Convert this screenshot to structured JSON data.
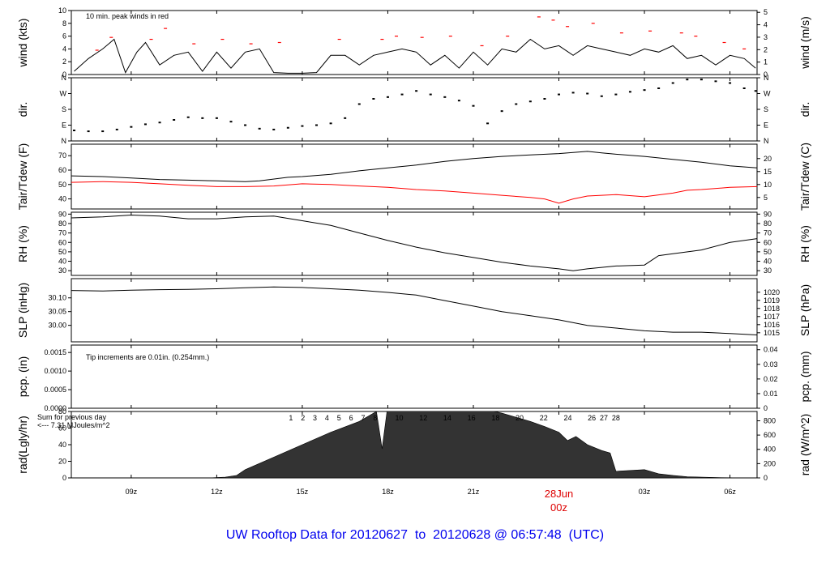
{
  "footer": {
    "title": "UW Rooftop Data for 20120627  to  20120628 @ 06:57:48  (UTC)"
  },
  "x_axis": {
    "ticks": [
      "09z",
      "12z",
      "15z",
      "18z",
      "21z",
      "00z",
      "03z",
      "06z"
    ],
    "tick_hours": [
      9,
      12,
      15,
      18,
      21,
      24,
      27,
      30
    ],
    "date_label": "28Jun",
    "date_hour": 24,
    "range_hours": [
      6.9,
      30.95
    ]
  },
  "chart_data": [
    {
      "type": "line",
      "title": "wind",
      "ylabel_left": "wind (kts)",
      "ylabel_right": "wind (m/s)",
      "annotation": "10 min. peak winds in red",
      "ylim": [
        0,
        10
      ],
      "yticks_left": [
        "0",
        "2",
        "4",
        "6",
        "8",
        "10"
      ],
      "yticks_right": [
        "0",
        "1",
        "2",
        "3",
        "4",
        "5"
      ],
      "series": [
        {
          "name": "wind",
          "color": "#000000",
          "x": [
            7.0,
            7.5,
            8.0,
            8.4,
            8.8,
            9.2,
            9.5,
            10.0,
            10.5,
            11.0,
            11.5,
            12.0,
            12.5,
            13.0,
            13.5,
            14.0,
            14.5,
            15.0,
            15.5,
            16.0,
            16.5,
            17.0,
            17.5,
            18.0,
            18.5,
            19.0,
            19.5,
            20.0,
            20.5,
            21.0,
            21.5,
            22.0,
            22.5,
            23.0,
            23.5,
            24.0,
            24.5,
            25.0,
            25.5,
            26.0,
            26.5,
            27.0,
            27.5,
            28.0,
            28.5,
            29.0,
            29.5,
            30.0,
            30.5,
            30.9
          ],
          "y": [
            0.5,
            2.5,
            4.0,
            5.5,
            0.3,
            3.5,
            5.0,
            1.5,
            3.0,
            3.5,
            0.5,
            3.5,
            1.0,
            3.5,
            4.0,
            0.3,
            0.2,
            0.2,
            0.3,
            3.0,
            3.0,
            1.5,
            3.0,
            3.5,
            4.0,
            3.5,
            1.5,
            3.0,
            1.0,
            3.5,
            1.5,
            4.0,
            3.5,
            5.5,
            4.0,
            4.5,
            3.0,
            4.5,
            4.0,
            3.5,
            3.0,
            4.0,
            3.5,
            4.5,
            2.5,
            3.0,
            1.5,
            3.0,
            2.5,
            1.0
          ]
        },
        {
          "name": "10 min. peak winds",
          "color": "#ff0000",
          "x": [
            7.8,
            8.3,
            9.7,
            10.2,
            11.2,
            12.2,
            13.2,
            14.2,
            16.3,
            17.8,
            18.3,
            19.2,
            20.2,
            21.3,
            22.2,
            23.3,
            23.8,
            24.3,
            25.2,
            26.2,
            27.2,
            28.3,
            28.8,
            29.8,
            30.5
          ],
          "y": [
            3.8,
            5.8,
            5.5,
            7.2,
            4.8,
            5.5,
            4.8,
            5.0,
            5.5,
            5.5,
            6.0,
            5.8,
            6.0,
            4.5,
            6.0,
            9.0,
            8.5,
            7.5,
            8.0,
            6.5,
            6.8,
            6.5,
            6.0,
            5.0,
            4.0
          ]
        }
      ]
    },
    {
      "type": "scatter",
      "title": "dir.",
      "ylabel_left": "dir.",
      "ylabel_right": "dir.",
      "yticks_left": [
        "N",
        "E",
        "S",
        "W",
        "N"
      ],
      "yticks_right": [
        "N",
        "E",
        "S",
        "W",
        "N"
      ],
      "ylim": [
        0,
        360
      ],
      "series": [
        {
          "name": "dir",
          "color": "#000000",
          "x": [
            7.0,
            7.5,
            8.0,
            8.5,
            9.0,
            9.5,
            10.0,
            10.5,
            11.0,
            11.5,
            12.0,
            12.5,
            13.0,
            13.5,
            14.0,
            14.5,
            15.0,
            15.5,
            16.0,
            16.5,
            17.0,
            17.5,
            18.0,
            18.5,
            19.0,
            19.5,
            20.0,
            20.5,
            21.0,
            21.5,
            22.0,
            22.5,
            23.0,
            23.5,
            24.0,
            24.5,
            25.0,
            25.5,
            26.0,
            26.5,
            27.0,
            27.5,
            28.0,
            28.5,
            29.0,
            29.5,
            30.0,
            30.5,
            30.9
          ],
          "y": [
            60,
            55,
            55,
            65,
            80,
            95,
            105,
            120,
            135,
            130,
            130,
            110,
            90,
            70,
            65,
            75,
            85,
            90,
            100,
            130,
            210,
            240,
            250,
            265,
            285,
            265,
            250,
            230,
            200,
            100,
            170,
            210,
            225,
            240,
            265,
            275,
            270,
            255,
            265,
            280,
            290,
            300,
            330,
            350,
            350,
            340,
            330,
            300,
            285
          ]
        }
      ]
    },
    {
      "type": "line",
      "title": "Tair/Tdew",
      "ylabel_left": "Tair/Tdew (F)",
      "ylabel_right": "Tair/Tdew (C)",
      "ylim": [
        33,
        78
      ],
      "yticks_left": [
        "40",
        "50",
        "60",
        "70"
      ],
      "yticks_right": [
        "5",
        "10",
        "15",
        "20"
      ],
      "series": [
        {
          "name": "Tair",
          "color": "#000000",
          "x": [
            6.9,
            8,
            9,
            10,
            11,
            12,
            13,
            13.5,
            14.5,
            15,
            16,
            17,
            18,
            19,
            20,
            21,
            22,
            23,
            24,
            25,
            25.5,
            26,
            27,
            28,
            29,
            30,
            30.95
          ],
          "y": [
            56,
            55.5,
            54.5,
            53.5,
            53,
            52.5,
            52,
            52.5,
            55,
            55.5,
            57,
            59.5,
            61.5,
            63.5,
            66,
            68,
            69.5,
            70.5,
            71.5,
            73,
            72,
            71,
            69.5,
            67.5,
            65.5,
            63,
            61.5
          ]
        },
        {
          "name": "Tdew",
          "color": "#ff0000",
          "x": [
            6.9,
            8,
            9,
            10,
            11,
            12,
            13,
            14,
            15,
            16,
            17,
            18,
            19,
            20,
            21,
            22,
            23,
            23.5,
            24,
            24.5,
            25,
            26,
            27,
            28,
            28.5,
            29,
            30,
            30.95
          ],
          "y": [
            51.5,
            52,
            51.5,
            50.5,
            49.5,
            48.5,
            48.5,
            49,
            50.5,
            50,
            49,
            48,
            46.5,
            45.5,
            44,
            42.5,
            41,
            40,
            37,
            40,
            42,
            43,
            41.5,
            44,
            46,
            46.5,
            48,
            48.5
          ]
        }
      ]
    },
    {
      "type": "line",
      "title": "RH",
      "ylabel_left": "RH (%)",
      "ylabel_right": "RH (%)",
      "ylim": [
        25,
        92
      ],
      "yticks_left": [
        "30",
        "40",
        "50",
        "60",
        "70",
        "80",
        "90"
      ],
      "yticks_right": [
        "30",
        "40",
        "50",
        "60",
        "70",
        "80",
        "90"
      ],
      "series": [
        {
          "name": "RH",
          "color": "#000000",
          "x": [
            6.9,
            8,
            9,
            10,
            11,
            12,
            13,
            14,
            15,
            16,
            17,
            18,
            19,
            20,
            21,
            22,
            23,
            24,
            24.5,
            25,
            26,
            27,
            27.5,
            28,
            29,
            30,
            30.95
          ],
          "y": [
            86,
            87,
            89,
            88,
            85,
            85,
            87,
            88,
            83,
            78,
            70,
            62,
            55,
            49,
            44,
            39,
            35,
            32,
            30,
            32,
            35,
            36,
            46,
            48,
            52,
            60,
            64
          ]
        }
      ]
    },
    {
      "type": "line",
      "title": "SLP",
      "ylabel_left": "SLP (inHg)",
      "ylabel_right": "SLP (hPa)",
      "ylim": [
        29.94,
        30.17
      ],
      "yticks_left": [
        "30.00",
        "30.05",
        "30.10"
      ],
      "yticks_right": [
        "1015",
        "1016",
        "1017",
        "1018",
        "1019",
        "1020"
      ],
      "series": [
        {
          "name": "SLP",
          "color": "#000000",
          "x": [
            6.9,
            8,
            9,
            10,
            11,
            12,
            13,
            14,
            15,
            16,
            17,
            18,
            19,
            20,
            21,
            22,
            23,
            24,
            25,
            26,
            27,
            28,
            29,
            30,
            30.95
          ],
          "y": [
            30.127,
            30.125,
            30.128,
            30.13,
            30.131,
            30.133,
            30.137,
            30.14,
            30.138,
            30.133,
            30.128,
            30.12,
            30.11,
            30.09,
            30.07,
            30.05,
            30.035,
            30.02,
            30.0,
            29.99,
            29.98,
            29.975,
            29.975,
            29.97,
            29.965
          ]
        }
      ]
    },
    {
      "type": "line",
      "title": "pcp",
      "ylabel_left": "pcp. (in)",
      "ylabel_right": "pcp. (mm)",
      "annotation": "Tip increments are 0.01in. (0.254mm.)",
      "ylim": [
        0,
        0.0017
      ],
      "yticks_left": [
        "0.0000",
        "0.0005",
        "0.0010",
        "0.0015"
      ],
      "yticks_right": [
        "0",
        "0.01",
        "0.02",
        "0.03",
        "0.04"
      ],
      "series": [
        {
          "name": "pcp",
          "color": "#000000",
          "x": [
            6.9,
            30.95
          ],
          "y": [
            0,
            0
          ]
        }
      ]
    },
    {
      "type": "area",
      "title": "rad",
      "ylabel_left": "rad(Lgly/hr)",
      "ylabel_right": "rad (W/m^2)",
      "annotation_lines": [
        "Sum for previous day",
        "<--- 7.31 MJoules/m^2"
      ],
      "hour_markers": [
        "1",
        "2",
        "3",
        "4",
        "5",
        "6",
        "7",
        "8",
        "10",
        "12",
        "14",
        "16",
        "18",
        "20",
        "22",
        "24",
        "26",
        "27",
        "28"
      ],
      "ylim": [
        0,
        80
      ],
      "yticks_left": [
        "0",
        "20",
        "40",
        "60",
        "80"
      ],
      "yticks_right": [
        "0",
        "200",
        "400",
        "600",
        "800"
      ],
      "series": [
        {
          "name": "rad",
          "color": "#333333",
          "x": [
            6.9,
            11.7,
            12.3,
            12.7,
            13.0,
            14,
            15,
            16,
            17,
            17.6,
            17.8,
            18.0,
            18.2,
            18.5,
            19,
            19.5,
            20,
            20.5,
            21,
            21.5,
            22,
            22.5,
            23,
            23.5,
            24,
            24.3,
            24.6,
            25,
            25.5,
            25.8,
            26.0,
            27,
            27.5,
            28,
            28.5,
            29,
            29.7,
            30.95
          ],
          "y": [
            0,
            0,
            1,
            3,
            10,
            25,
            40,
            55,
            68,
            80,
            35,
            88,
            84,
            87,
            90,
            89,
            88,
            87,
            85,
            82,
            78,
            73,
            68,
            62,
            55,
            45,
            50,
            40,
            33,
            30,
            8,
            10,
            5,
            3,
            1.5,
            1,
            0.3,
            0
          ]
        }
      ]
    }
  ]
}
